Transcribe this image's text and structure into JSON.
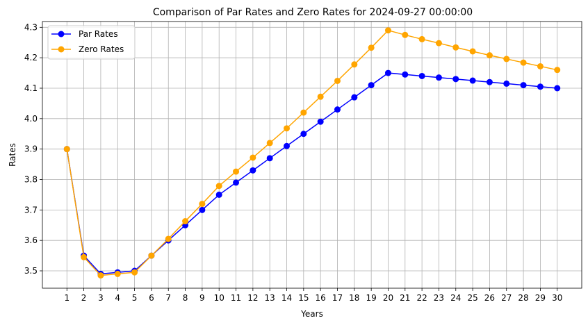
{
  "chart_data": {
    "type": "line",
    "title": "Comparison of Par Rates and Zero Rates for 2024-09-27 00:00:00",
    "xlabel": "Years",
    "ylabel": "Rates",
    "x": [
      1,
      2,
      3,
      4,
      5,
      6,
      7,
      8,
      9,
      10,
      11,
      12,
      13,
      14,
      15,
      16,
      17,
      18,
      19,
      20,
      21,
      22,
      23,
      24,
      25,
      26,
      27,
      28,
      29,
      30
    ],
    "xlim": [
      -0.45,
      31.45
    ],
    "ylim": [
      3.443,
      4.319
    ],
    "yticks": [
      "3.5",
      "3.6",
      "3.7",
      "3.8",
      "3.9",
      "4.0",
      "4.1",
      "4.2",
      "4.3"
    ],
    "grid": true,
    "legend_position": "top-left",
    "series": [
      {
        "name": "Par Rates",
        "color": "#0000ff",
        "marker": "circle",
        "values": [
          3.9,
          3.55,
          3.49,
          3.495,
          3.5,
          3.55,
          3.6,
          3.65,
          3.7,
          3.75,
          3.79,
          3.83,
          3.87,
          3.91,
          3.95,
          3.99,
          4.03,
          4.07,
          4.11,
          4.15,
          4.145,
          4.14,
          4.135,
          4.13,
          4.125,
          4.12,
          4.115,
          4.11,
          4.105,
          4.1
        ]
      },
      {
        "name": "Zero Rates",
        "color": "#ffa500",
        "marker": "circle",
        "values": [
          3.9,
          3.545,
          3.485,
          3.49,
          3.495,
          3.55,
          3.605,
          3.663,
          3.72,
          3.779,
          3.826,
          3.872,
          3.92,
          3.968,
          4.02,
          4.072,
          4.124,
          4.178,
          4.233,
          4.29,
          4.275,
          4.261,
          4.248,
          4.234,
          4.221,
          4.208,
          4.196,
          4.184,
          4.172,
          4.16
        ]
      }
    ]
  }
}
